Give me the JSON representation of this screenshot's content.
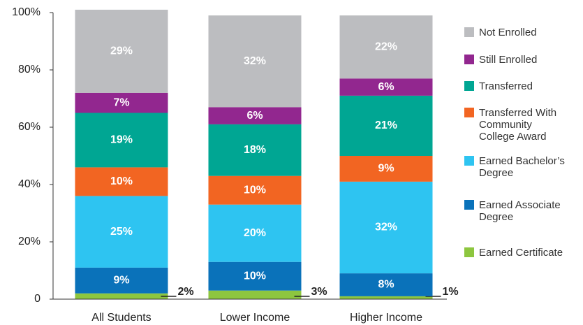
{
  "chart_data": {
    "type": "stacked_bar",
    "categories": [
      "All Students",
      "Lower Income",
      "Higher Income"
    ],
    "series": [
      {
        "name": "Earned Certificate",
        "color": "#8dc63f",
        "values": [
          2,
          3,
          1
        ],
        "value_labels": [
          "2%",
          "3%",
          "1%"
        ]
      },
      {
        "name": "Earned Associate Degree",
        "color": "#0a72ba",
        "values": [
          9,
          10,
          8
        ],
        "value_labels": [
          "9%",
          "10%",
          "8%"
        ]
      },
      {
        "name": "Earned Bachelor’s Degree",
        "color": "#2ec4f1",
        "values": [
          25,
          20,
          32
        ],
        "value_labels": [
          "25%",
          "20%",
          "32%"
        ]
      },
      {
        "name": "Transferred With Community College Award",
        "color": "#f26522",
        "values": [
          10,
          10,
          9
        ],
        "value_labels": [
          "10%",
          "10%",
          "9%"
        ]
      },
      {
        "name": "Transferred",
        "color": "#00a693",
        "values": [
          19,
          18,
          21
        ],
        "value_labels": [
          "19%",
          "18%",
          "21%"
        ]
      },
      {
        "name": "Still Enrolled",
        "color": "#92278f",
        "values": [
          7,
          6,
          6
        ],
        "value_labels": [
          "7%",
          "6%",
          "6%"
        ]
      },
      {
        "name": "Not Enrolled",
        "color": "#bcbdc0",
        "values": [
          29,
          32,
          22
        ],
        "value_labels": [
          "29%",
          "32%",
          "22%"
        ]
      }
    ],
    "ylim": [
      0,
      100
    ],
    "yticks": [
      0,
      {
        "value": 20,
        "label": "20%"
      },
      {
        "value": 40,
        "label": "40%"
      },
      {
        "value": 60,
        "label": "60%"
      },
      {
        "value": 80,
        "label": "80%"
      },
      {
        "value": 100,
        "label": "100%"
      }
    ]
  }
}
